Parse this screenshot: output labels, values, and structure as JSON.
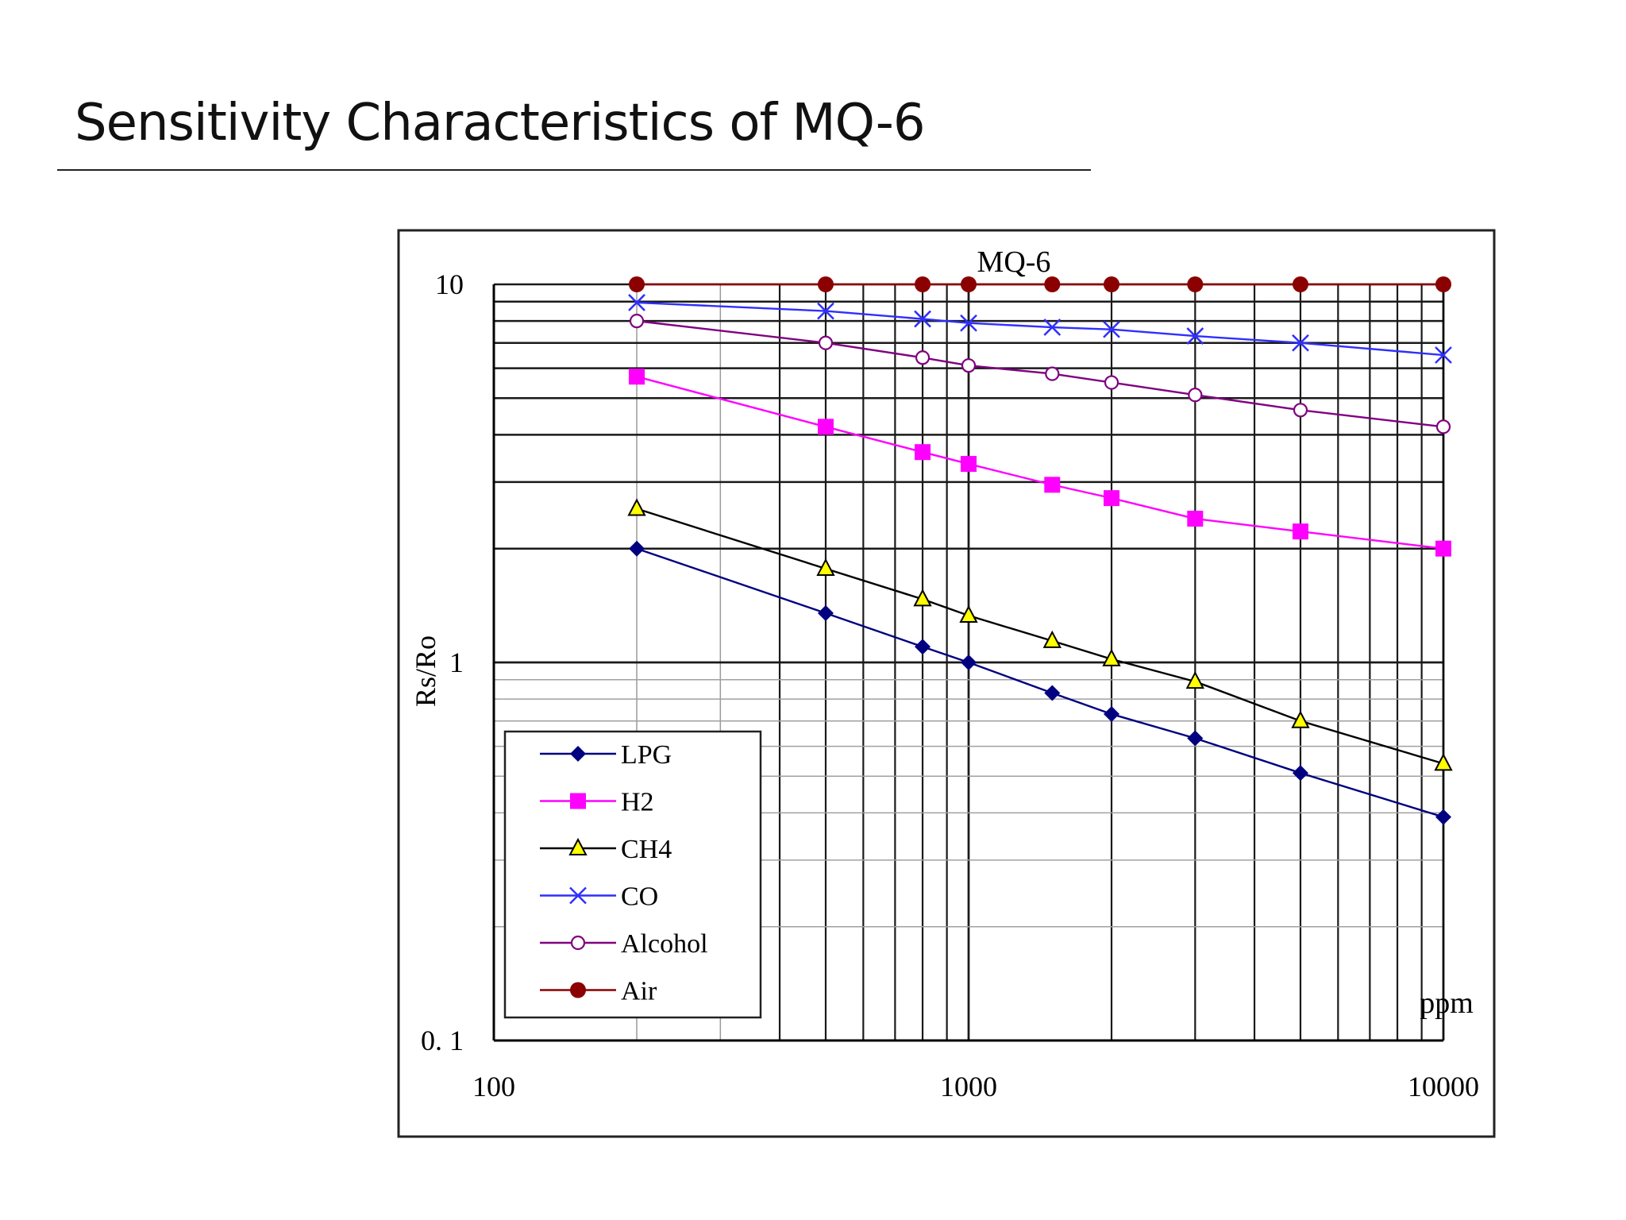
{
  "page": {
    "title": "Sensitivity Characteristics of MQ-6"
  },
  "chart_data": {
    "type": "line",
    "title": "MQ-6",
    "xlabel": "ppm",
    "ylabel": "Rs/Ro",
    "x_scale": "log",
    "y_scale": "log",
    "xlim": [
      100,
      10000
    ],
    "ylim": [
      0.1,
      10
    ],
    "x_tick_labels": [
      "100",
      "1000",
      "10000"
    ],
    "y_tick_labels": [
      "0. 1",
      "1",
      "10"
    ],
    "x_tick_values": [
      100,
      1000,
      10000
    ],
    "y_tick_values": [
      0.1,
      1,
      10
    ],
    "grid": true,
    "legend_position": "bottom-left",
    "x": [
      200,
      500,
      800,
      1000,
      1500,
      2000,
      3000,
      5000,
      10000
    ],
    "series": [
      {
        "name": "LPG",
        "color": "#000080",
        "marker": "diamond",
        "values": [
          2.0,
          1.35,
          1.1,
          1.0,
          0.83,
          0.73,
          0.63,
          0.51,
          0.39
        ]
      },
      {
        "name": "H2",
        "color": "#ff00ff",
        "marker": "square",
        "values": [
          5.7,
          4.2,
          3.6,
          3.35,
          2.95,
          2.72,
          2.4,
          2.22,
          2.0
        ]
      },
      {
        "name": "CH4",
        "color": "#000000",
        "marker": "triangle",
        "values": [
          2.55,
          1.77,
          1.47,
          1.33,
          1.14,
          1.02,
          0.89,
          0.7,
          0.54
        ]
      },
      {
        "name": "CO",
        "color": "#2f2fff",
        "marker": "x",
        "values": [
          8.95,
          8.5,
          8.1,
          7.9,
          7.7,
          7.6,
          7.3,
          7.0,
          6.5
        ]
      },
      {
        "name": "Alcohol",
        "color": "#800080",
        "marker": "circle",
        "values": [
          8.0,
          7.0,
          6.4,
          6.1,
          5.8,
          5.5,
          5.1,
          4.65,
          4.2
        ]
      },
      {
        "name": "Air",
        "color": "#8b0000",
        "marker": "dot",
        "values": [
          10,
          10,
          10,
          10,
          10,
          10,
          10,
          10,
          10
        ]
      }
    ]
  }
}
